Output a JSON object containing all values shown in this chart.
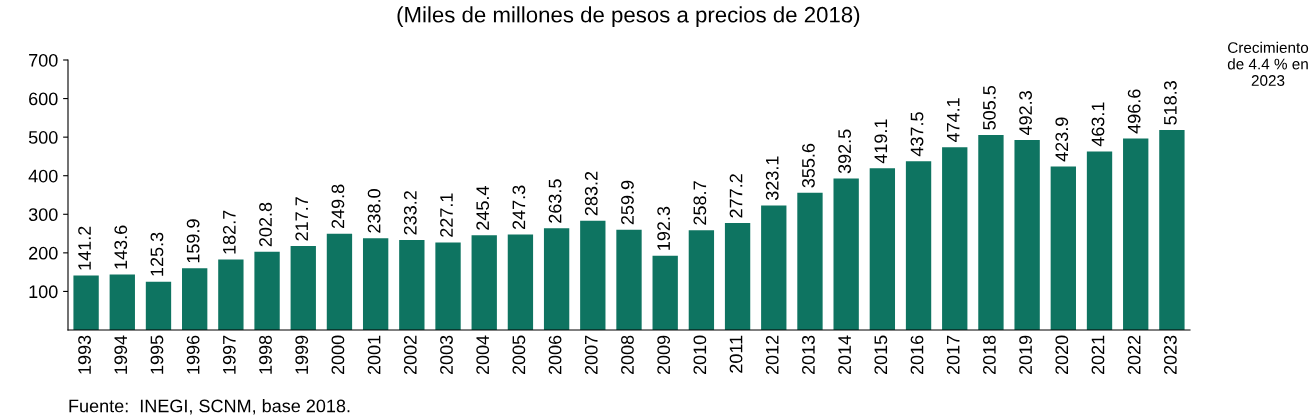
{
  "chart_data": {
    "type": "bar",
    "subtitle": "(Miles de millones de pesos a precios de 2018)",
    "categories": [
      "1993",
      "1994",
      "1995",
      "1996",
      "1997",
      "1998",
      "1999",
      "2000",
      "2001",
      "2002",
      "2003",
      "2004",
      "2005",
      "2006",
      "2007",
      "2008",
      "2009",
      "2010",
      "2011",
      "2012",
      "2013",
      "2014",
      "2015",
      "2016",
      "2017",
      "2018",
      "2019",
      "2020",
      "2021",
      "2022",
      "2023"
    ],
    "values": [
      141.2,
      143.6,
      125.3,
      159.9,
      182.7,
      202.8,
      217.7,
      249.8,
      238.0,
      233.2,
      227.1,
      245.4,
      247.3,
      263.5,
      283.2,
      259.9,
      192.3,
      258.7,
      277.2,
      323.1,
      355.6,
      392.5,
      419.1,
      437.5,
      474.1,
      505.5,
      492.3,
      423.9,
      463.1,
      496.6,
      518.3
    ],
    "value_labels": [
      "141.2",
      "143.6",
      "125.3",
      "159.9",
      "182.7",
      "202.8",
      "217.7",
      "249.8",
      "238.0",
      "233.2",
      "227.1",
      "245.4",
      "247.3",
      "263.5",
      "283.2",
      "259.9",
      "192.3",
      "258.7",
      "277.2",
      "323.1",
      "355.6",
      "392.5",
      "419.1",
      "437.5",
      "474.1",
      "505.5",
      "492.3",
      "423.9",
      "463.1",
      "496.6",
      "518.3"
    ],
    "color": "#0e7461",
    "ylim": [
      0,
      700
    ],
    "yticks": [
      100,
      200,
      300,
      400,
      500,
      600,
      700
    ],
    "grid": false,
    "annotations": [
      "Crecimiento\nde 4.4 % en\n2023",
      "Fuente:  INEGI, SCNM, base 2018."
    ]
  }
}
